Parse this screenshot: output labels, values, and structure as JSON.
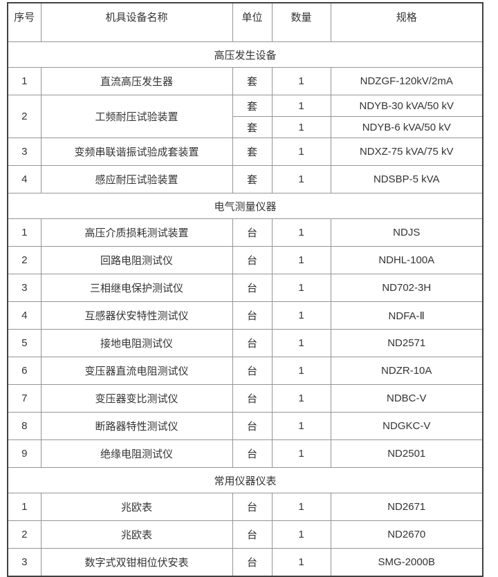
{
  "colors": {
    "border_inner": "#949494",
    "border_outer": "#404040",
    "text": "#333333",
    "background": "#ffffff"
  },
  "table": {
    "headers": [
      "序号",
      "机具设备名称",
      "单位",
      "数量",
      "规格"
    ],
    "sections": [
      {
        "title": "高压发生设备",
        "rows": [
          {
            "no": "1",
            "name": "直流高压发生器",
            "subrows": [
              {
                "unit": "套",
                "qty": "1",
                "spec": "NDZGF-120kV/2mA"
              }
            ]
          },
          {
            "no": "2",
            "name": "工频耐压试验装置",
            "subrows": [
              {
                "unit": "套",
                "qty": "1",
                "spec": "NDYB-30 kVA/50 kV"
              },
              {
                "unit": "套",
                "qty": "1",
                "spec": "NDYB-6 kVA/50 kV"
              }
            ]
          },
          {
            "no": "3",
            "name": "变频串联谐振试验成套装置",
            "subrows": [
              {
                "unit": "套",
                "qty": "1",
                "spec": "NDXZ-75 kVA/75 kV"
              }
            ]
          },
          {
            "no": "4",
            "name": "感应耐压试验装置",
            "subrows": [
              {
                "unit": "套",
                "qty": "1",
                "spec": "NDSBP-5 kVA"
              }
            ]
          }
        ]
      },
      {
        "title": "电气测量仪器",
        "rows": [
          {
            "no": "1",
            "name": "高压介质损耗测试装置",
            "subrows": [
              {
                "unit": "台",
                "qty": "1",
                "spec": "NDJS"
              }
            ]
          },
          {
            "no": "2",
            "name": "回路电阻测试仪",
            "subrows": [
              {
                "unit": "台",
                "qty": "1",
                "spec": "NDHL-100A"
              }
            ]
          },
          {
            "no": "3",
            "name": "三相继电保护测试仪",
            "subrows": [
              {
                "unit": "台",
                "qty": "1",
                "spec": "ND702-3H"
              }
            ]
          },
          {
            "no": "4",
            "name": "互感器伏安特性测试仪",
            "subrows": [
              {
                "unit": "台",
                "qty": "1",
                "spec": "NDFA-Ⅱ"
              }
            ]
          },
          {
            "no": "5",
            "name": "接地电阻测试仪",
            "subrows": [
              {
                "unit": "台",
                "qty": "1",
                "spec": "ND2571"
              }
            ]
          },
          {
            "no": "6",
            "name": "变压器直流电阻测试仪",
            "subrows": [
              {
                "unit": "台",
                "qty": "1",
                "spec": "NDZR-10A"
              }
            ]
          },
          {
            "no": "7",
            "name": "变压器变比测试仪",
            "subrows": [
              {
                "unit": "台",
                "qty": "1",
                "spec": "NDBC-V"
              }
            ]
          },
          {
            "no": "8",
            "name": "断路器特性测试仪",
            "subrows": [
              {
                "unit": "台",
                "qty": "1",
                "spec": "NDGKC-V"
              }
            ]
          },
          {
            "no": "9",
            "name": "绝缘电阻测试仪",
            "subrows": [
              {
                "unit": "台",
                "qty": "1",
                "spec": "ND2501"
              }
            ]
          }
        ]
      },
      {
        "title": "常用仪器仪表",
        "rows": [
          {
            "no": "1",
            "name": "兆欧表",
            "subrows": [
              {
                "unit": "台",
                "qty": "1",
                "spec": "ND2671"
              }
            ]
          },
          {
            "no": "2",
            "name": "兆欧表",
            "subrows": [
              {
                "unit": "台",
                "qty": "1",
                "spec": "ND2670"
              }
            ]
          },
          {
            "no": "3",
            "name": "数字式双钳相位伏安表",
            "subrows": [
              {
                "unit": "台",
                "qty": "1",
                "spec": "SMG-2000B"
              }
            ]
          }
        ]
      }
    ]
  }
}
